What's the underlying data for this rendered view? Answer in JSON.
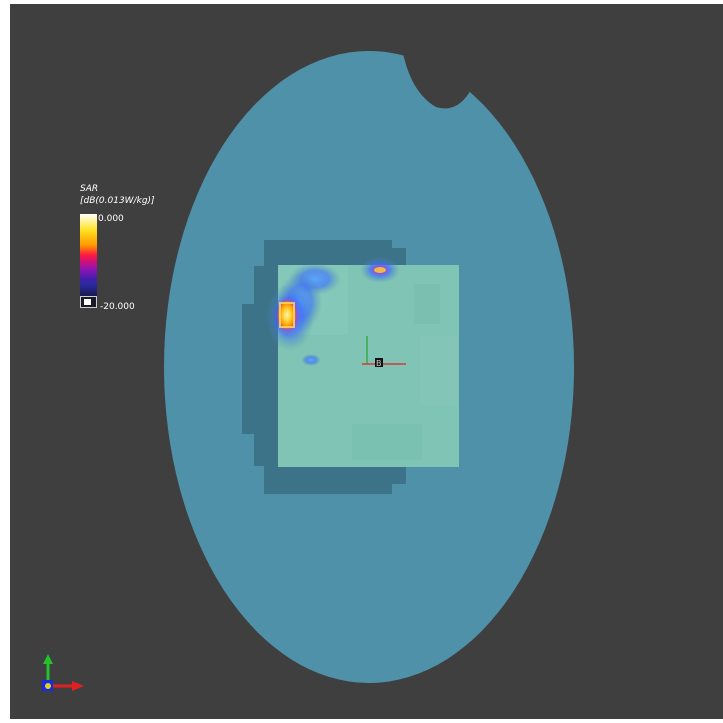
{
  "legend": {
    "title_line1": "SAR",
    "title_line2": "[dB(0.013W/kg)]",
    "max_label": "0.000",
    "min_label": "-20.000"
  },
  "colors": {
    "background": "#3f3f3f",
    "phantom": "#4f91a9",
    "device_shadow": "#3d7389",
    "device_board": "#7fc4b4",
    "hotspot_core": "#ffd230",
    "hotspot_outer": "#2a6bd6"
  },
  "icons": {
    "orientation_triad": "xyz-axes-icon",
    "center_marker": "origin-crosshair-icon"
  }
}
